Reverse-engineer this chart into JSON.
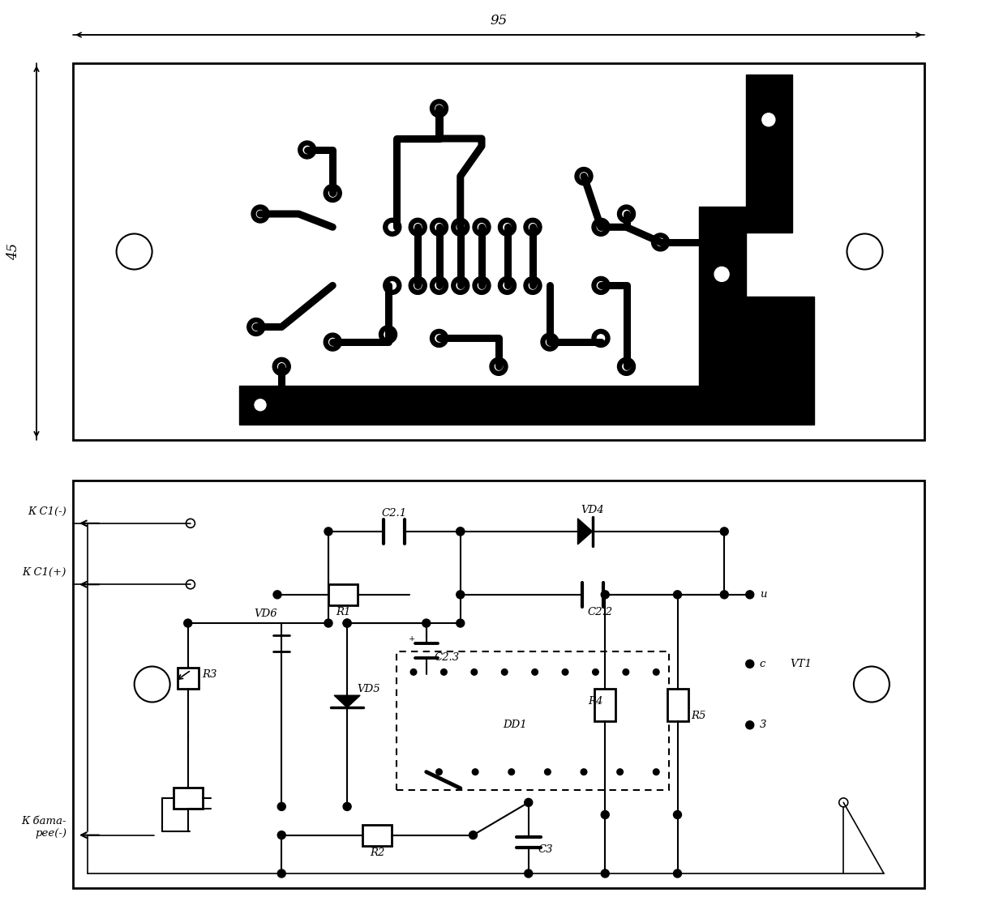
{
  "bg_color": "#ffffff",
  "line_color": "#000000",
  "labels": {
    "dim_95": "95",
    "dim_45": "45",
    "kc1_minus": "К С1(-)",
    "kc1_plus": "К С1(+)",
    "k_bat_minus": "К бата-\nрее(-)",
    "c21": "С2.1",
    "c22": "С2.2",
    "c23": "С2.3",
    "vd4": "VD4",
    "vd5": "VD5",
    "vd6": "VD6",
    "dd1": "DD1",
    "r1": "R1",
    "r2": "R2",
    "r3": "R3",
    "r4": "R4",
    "r5": "R5",
    "c3": "C3",
    "vt1": "VT1",
    "u_label": "u",
    "c_label": "c",
    "z_label": "3"
  }
}
